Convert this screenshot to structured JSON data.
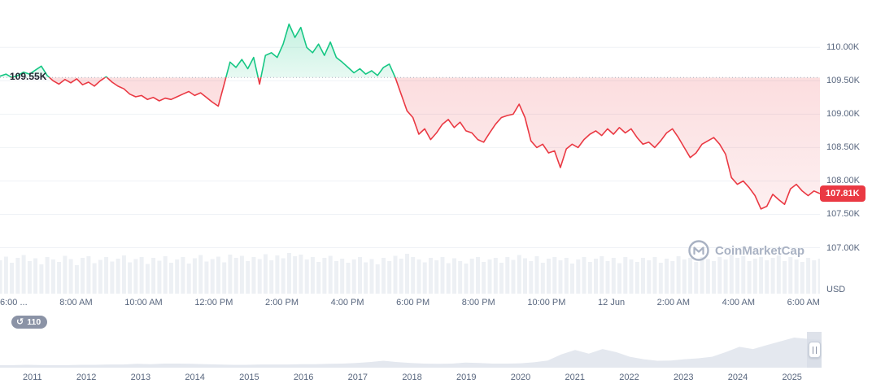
{
  "chart_data": {
    "type": "area",
    "baseline": 109.55,
    "baseline_label": "109.55K",
    "current": 107.81,
    "current_label": "107.81K",
    "unit_label": "USD",
    "ylim": [
      106.3,
      110.71
    ],
    "y_ticks": [
      {
        "label": "110.00K",
        "value": 110.0
      },
      {
        "label": "109.50K",
        "value": 109.5
      },
      {
        "label": "109.00K",
        "value": 109.0
      },
      {
        "label": "108.50K",
        "value": 108.5
      },
      {
        "label": "108.00K",
        "value": 108.0
      },
      {
        "label": "107.50K",
        "value": 107.5
      },
      {
        "label": "107.00K",
        "value": 107.0
      }
    ],
    "x_tick_labels": [
      "6:00 ...",
      "8:00 AM",
      "10:00 AM",
      "12:00 PM",
      "2:00 PM",
      "4:00 PM",
      "6:00 PM",
      "8:00 PM",
      "10:00 PM",
      "12 Jun",
      "2:00 AM",
      "4:00 AM",
      "6:00 AM"
    ],
    "colors": {
      "up": "#16c784",
      "down": "#ea3943",
      "volume": "#edf0f4",
      "navigator": "#e4e8ef"
    },
    "prices_k": [
      109.57,
      109.6,
      109.55,
      109.58,
      109.63,
      109.6,
      109.66,
      109.72,
      109.58,
      109.5,
      109.45,
      109.52,
      109.47,
      109.53,
      109.44,
      109.48,
      109.42,
      109.5,
      109.56,
      109.48,
      109.42,
      109.38,
      109.3,
      109.26,
      109.28,
      109.22,
      109.25,
      109.2,
      109.24,
      109.22,
      109.26,
      109.3,
      109.34,
      109.28,
      109.32,
      109.25,
      109.18,
      109.12,
      109.45,
      109.78,
      109.7,
      109.82,
      109.68,
      109.85,
      109.45,
      109.88,
      109.92,
      109.85,
      110.05,
      110.35,
      110.15,
      110.3,
      110.0,
      109.92,
      110.05,
      109.88,
      110.08,
      109.85,
      109.78,
      109.7,
      109.62,
      109.68,
      109.6,
      109.65,
      109.58,
      109.7,
      109.75,
      109.55,
      109.3,
      109.05,
      108.95,
      108.7,
      108.78,
      108.62,
      108.72,
      108.85,
      108.92,
      108.8,
      108.88,
      108.75,
      108.72,
      108.62,
      108.58,
      108.72,
      108.85,
      108.95,
      108.98,
      109.0,
      109.15,
      108.95,
      108.6,
      108.5,
      108.55,
      108.42,
      108.45,
      108.2,
      108.48,
      108.55,
      108.5,
      108.62,
      108.7,
      108.75,
      108.68,
      108.78,
      108.7,
      108.8,
      108.72,
      108.78,
      108.65,
      108.55,
      108.58,
      108.5,
      108.6,
      108.72,
      108.78,
      108.65,
      108.5,
      108.35,
      108.42,
      108.55,
      108.6,
      108.65,
      108.55,
      108.4,
      108.05,
      107.95,
      108.0,
      107.9,
      107.78,
      107.58,
      107.62,
      107.8,
      107.72,
      107.65,
      107.88,
      107.95,
      107.85,
      107.78,
      107.85,
      107.81
    ],
    "volumes_rel": [
      0.82,
      0.91,
      0.76,
      0.88,
      0.95,
      0.8,
      0.87,
      0.72,
      0.9,
      0.84,
      0.78,
      0.93,
      0.85,
      0.7,
      0.88,
      0.92,
      0.75,
      0.83,
      0.9,
      0.79,
      0.86,
      0.94,
      0.77,
      0.85,
      0.9,
      0.73,
      0.88,
      0.81,
      0.92,
      0.76,
      0.84,
      0.9,
      0.74,
      0.87,
      0.95,
      0.79,
      0.85,
      0.91,
      0.77,
      0.96,
      0.88,
      0.93,
      0.8,
      0.9,
      0.85,
      0.97,
      0.82,
      0.94,
      0.87,
      1.0,
      0.92,
      0.96,
      0.84,
      0.9,
      0.78,
      0.88,
      0.93,
      0.8,
      0.86,
      0.76,
      0.84,
      0.9,
      0.77,
      0.85,
      0.72,
      0.88,
      0.8,
      0.93,
      0.86,
      0.98,
      0.9,
      0.84,
      0.77,
      0.88,
      0.82,
      0.9,
      0.75,
      0.87,
      0.8,
      0.74,
      0.86,
      0.9,
      0.78,
      0.84,
      0.88,
      0.76,
      0.9,
      0.83,
      0.95,
      0.87,
      0.8,
      0.92,
      0.76,
      0.86,
      0.9,
      0.82,
      0.88,
      0.74,
      0.84,
      0.9,
      0.78,
      0.86,
      0.92,
      0.8,
      0.88,
      0.75,
      0.9,
      0.84,
      0.78,
      0.88,
      0.82,
      0.9,
      0.76,
      0.86,
      0.8,
      0.92,
      0.84,
      0.88,
      0.78,
      0.9,
      0.85,
      0.8,
      0.9,
      0.84,
      0.96,
      0.88,
      0.92,
      0.8,
      0.86,
      0.9,
      0.82,
      0.88,
      0.94,
      0.8,
      0.9,
      0.84,
      0.78,
      0.88,
      0.82,
      0.86
    ]
  },
  "badges": {
    "history_count": "110"
  },
  "watermark": {
    "text": "CoinMarketCap"
  },
  "navigator": {
    "type": "area",
    "years": [
      "2011",
      "2012",
      "2013",
      "2014",
      "2015",
      "2016",
      "2017",
      "2018",
      "2019",
      "2020",
      "2021",
      "2022",
      "2023",
      "2024",
      "2025"
    ],
    "values_rel": [
      0.03,
      0.03,
      0.04,
      0.03,
      0.03,
      0.03,
      0.04,
      0.04,
      0.05,
      0.05,
      0.07,
      0.06,
      0.08,
      0.08,
      0.07,
      0.06,
      0.05,
      0.04,
      0.04,
      0.05,
      0.05,
      0.05,
      0.06,
      0.06,
      0.07,
      0.08,
      0.1,
      0.13,
      0.17,
      0.13,
      0.1,
      0.08,
      0.07,
      0.08,
      0.11,
      0.1,
      0.08,
      0.08,
      0.09,
      0.12,
      0.18,
      0.38,
      0.52,
      0.4,
      0.55,
      0.45,
      0.3,
      0.22,
      0.17,
      0.18,
      0.22,
      0.25,
      0.3,
      0.45,
      0.62,
      0.55,
      0.68,
      0.8,
      0.92,
      0.88,
      0.85
    ]
  }
}
